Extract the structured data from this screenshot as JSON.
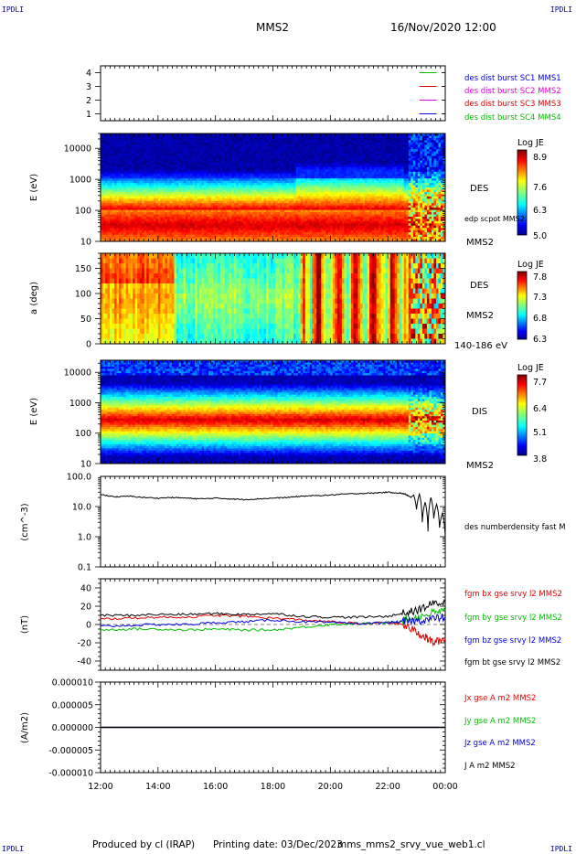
{
  "corner_tag": "IPDLI",
  "header": {
    "spacecraft": "MMS2",
    "datetime": "16/Nov/2020 12:00"
  },
  "footer": {
    "produced_by": "Produced by cl (IRAP)",
    "printing_date": "Printing date: 03/Dec/2023",
    "filename": "mms_mms2_srvy_vue_web1.cl"
  },
  "colors": {
    "red": "#e00000",
    "green": "#00c000",
    "blue": "#0000e0",
    "magenta": "#e000e0",
    "black": "#000000",
    "navy": "#00008b"
  },
  "chart_data": [
    {
      "type": "line",
      "id": "sc_availability",
      "ylim": [
        0.5,
        4.5
      ],
      "yticks": [
        1,
        2,
        3,
        4
      ],
      "legend": [
        {
          "name": "des dist burst SC1 MMS1",
          "color": "#0000e0"
        },
        {
          "name": "des dist burst SC2 MMS2",
          "color": "#e000e0"
        },
        {
          "name": "des dist burst SC3 MMS3",
          "color": "#e00000"
        },
        {
          "name": "des dist burst SC4 MMS4",
          "color": "#00c000"
        }
      ],
      "series": [
        {
          "level": 4,
          "color": "#00c000",
          "x_ranges": [
            [
              23.1,
              23.7
            ],
            [
              23.9,
              24.0
            ]
          ]
        },
        {
          "level": 3,
          "color": "#e00000",
          "x_ranges": [
            [
              23.1,
              23.7
            ],
            [
              23.9,
              24.0
            ]
          ]
        },
        {
          "level": 2,
          "color": "#e000e0",
          "x_ranges": [
            [
              23.1,
              23.7
            ],
            [
              23.9,
              24.0
            ]
          ]
        },
        {
          "level": 1,
          "color": "#0000e0",
          "x_ranges": [
            [
              23.1,
              23.7
            ],
            [
              23.9,
              24.0
            ]
          ]
        }
      ]
    },
    {
      "type": "heatmap",
      "id": "des_energy",
      "ylabel": "E (eV)",
      "yscale": "log",
      "ylim": [
        10,
        30000
      ],
      "yticks": [
        "10",
        "100",
        "1000",
        "10000"
      ],
      "label_main": "DES",
      "label_extra": "edp scpot MMS2",
      "label_sc": "MMS2",
      "colorbar": {
        "title": "Log JE",
        "ticks": [
          "8.9",
          "7.6",
          "6.3",
          "5.0"
        ],
        "range": [
          5.0,
          8.9
        ]
      }
    },
    {
      "type": "heatmap",
      "id": "des_pitch",
      "ylabel": "a (deg)",
      "ylim": [
        0,
        180
      ],
      "yticks": [
        "0",
        "50",
        "100",
        "150"
      ],
      "label_main": "DES",
      "label_sc": "MMS2",
      "label_energy": "140-186 eV",
      "colorbar": {
        "title": "Log JE",
        "ticks": [
          "7.8",
          "7.3",
          "6.8",
          "6.3"
        ],
        "range": [
          6.3,
          7.8
        ]
      }
    },
    {
      "type": "heatmap",
      "id": "dis_energy",
      "ylabel": "E (eV)",
      "yscale": "log",
      "ylim": [
        10,
        25000
      ],
      "yticks": [
        "10",
        "100",
        "1000",
        "10000"
      ],
      "label_main": "DIS",
      "label_sc": "MMS2",
      "colorbar": {
        "title": "Log JE",
        "ticks": [
          "7.7",
          "6.4",
          "5.1",
          "3.8"
        ],
        "range": [
          3.8,
          7.7
        ]
      }
    },
    {
      "type": "line",
      "id": "density",
      "ylabel": "(cm^-3)",
      "yscale": "log",
      "ylim": [
        0.1,
        100
      ],
      "yticks": [
        "0.1",
        "1.0",
        "10.0",
        "100.0"
      ],
      "series": [
        {
          "name": "des numberdensity fast M",
          "color": "#000000",
          "x": [
            12.0,
            12.5,
            13.0,
            13.5,
            14.0,
            14.5,
            15.0,
            15.5,
            16.0,
            16.5,
            17.0,
            17.5,
            18.0,
            18.5,
            19.0,
            19.5,
            20.0,
            20.5,
            21.0,
            21.5,
            22.0,
            22.4,
            22.6,
            22.8,
            22.9,
            23.0,
            23.1,
            23.2,
            23.3,
            23.4,
            23.5,
            23.6,
            23.7,
            23.8,
            23.9,
            24.0
          ],
          "y": [
            25,
            21,
            22,
            20,
            19,
            20,
            19,
            18,
            19,
            18,
            17,
            18,
            19,
            20,
            22,
            23,
            24,
            26,
            27,
            28,
            30,
            28,
            26,
            20,
            24,
            8,
            26,
            3,
            14,
            1.5,
            20,
            4,
            12,
            2,
            6,
            0.9
          ]
        }
      ]
    },
    {
      "type": "line",
      "id": "magnetic_field",
      "ylabel": "(nT)",
      "ylim": [
        -50,
        50
      ],
      "yticks": [
        "-40",
        "-20",
        "0",
        "20",
        "40"
      ],
      "series": [
        {
          "name": "fgm bx gse srvy l2 MMS2",
          "color": "#e00000",
          "x": [
            12.0,
            13.0,
            14.0,
            15.0,
            16.0,
            17.0,
            18.0,
            19.0,
            20.0,
            21.0,
            22.0,
            22.5,
            23.0,
            23.3,
            23.6,
            24.0
          ],
          "y": [
            6,
            7,
            8,
            8,
            10,
            9,
            7,
            5,
            3,
            1,
            2,
            0,
            -8,
            -14,
            -20,
            -15
          ]
        },
        {
          "name": "fgm by gse srvy l2 MMS2",
          "color": "#00c000",
          "x": [
            12.0,
            13.0,
            14.0,
            15.0,
            16.0,
            17.0,
            18.0,
            19.0,
            20.0,
            21.0,
            22.0,
            22.5,
            23.0,
            23.5,
            24.0
          ],
          "y": [
            -6,
            -5,
            -5,
            -6,
            -5,
            -6,
            -6,
            -3,
            0,
            1,
            2,
            4,
            8,
            12,
            15
          ]
        },
        {
          "name": "fgm bz gse srvy l2 MMS2",
          "color": "#0000e0",
          "x": [
            12.0,
            13.0,
            14.0,
            15.0,
            16.0,
            17.0,
            18.0,
            19.0,
            20.0,
            21.0,
            22.0,
            22.5,
            23.0,
            23.5,
            24.0
          ],
          "y": [
            -2,
            -1,
            0,
            0,
            2,
            3,
            5,
            3,
            2,
            1,
            2,
            3,
            4,
            6,
            8
          ]
        },
        {
          "name": "fgm bt gse srvy l2 MMS2",
          "color": "#000000",
          "x": [
            12.0,
            13.0,
            14.0,
            15.0,
            16.0,
            17.0,
            18.0,
            19.0,
            20.0,
            21.0,
            22.0,
            22.5,
            23.0,
            23.5,
            24.0
          ],
          "y": [
            10,
            10,
            11,
            11,
            12,
            11,
            12,
            9,
            8,
            8,
            9,
            12,
            15,
            22,
            25
          ]
        }
      ]
    },
    {
      "type": "line",
      "id": "current_density",
      "ylabel": "(A/m2)",
      "ylim": [
        -1e-05,
        1e-05
      ],
      "yticks": [
        "-0.000010",
        "-0.000005",
        "0.000000",
        "0.000005",
        "0.000010"
      ],
      "series": [
        {
          "name": "Jx gse A m2 MMS2",
          "color": "#e00000",
          "x": [
            12,
            24
          ],
          "y": [
            0,
            0
          ]
        },
        {
          "name": "Jy gse A m2 MMS2",
          "color": "#00c000",
          "x": [
            12,
            24
          ],
          "y": [
            0,
            0
          ]
        },
        {
          "name": "Jz gse A m2 MMS2",
          "color": "#0000e0",
          "x": [
            12,
            24
          ],
          "y": [
            0,
            0
          ]
        },
        {
          "name": "J A m2 MMS2",
          "color": "#000000",
          "x": [
            12,
            24
          ],
          "y": [
            0,
            0
          ]
        }
      ]
    }
  ],
  "x_axis": {
    "range": [
      12,
      24
    ],
    "tick_labels": [
      "12:00",
      "14:00",
      "16:00",
      "18:00",
      "20:00",
      "22:00",
      "00:00"
    ]
  }
}
